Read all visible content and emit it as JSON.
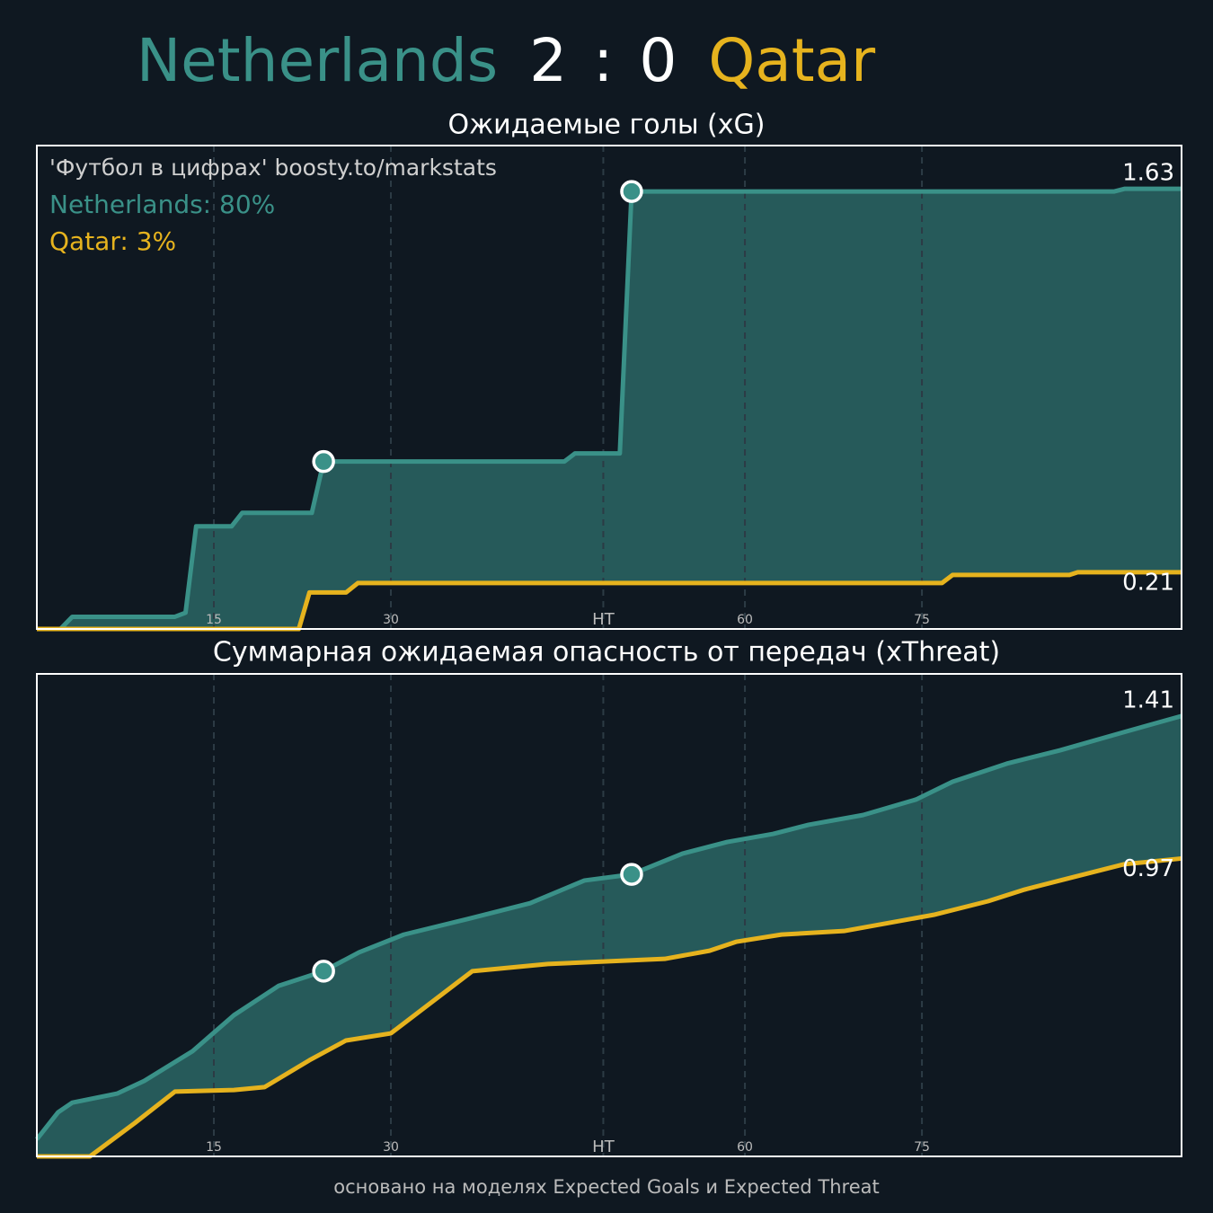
{
  "header": {
    "home": "Netherlands",
    "home_score": 2,
    "separator": ":",
    "away_score": 0,
    "away": "Qatar",
    "home_color": "#3a9188",
    "away_color": "#e6b31e"
  },
  "chart_data": [
    {
      "type": "line",
      "title": "Ожидаемые голы (xG)",
      "fill_between": true,
      "fill_color": "#265a5a",
      "grid": true,
      "annotations": [
        {
          "text": "'Футбол в цифрах' boosty.to/markstats",
          "color": "#cfcfcf"
        },
        {
          "text": "Netherlands: 80%",
          "color": "#3a9188"
        },
        {
          "text": "Qatar: 3%",
          "color": "#e6b31e"
        }
      ],
      "xlim": [
        0,
        97
      ],
      "ylim": [
        0,
        1.79
      ],
      "xticks": [
        15,
        30,
        {
          "value": 48,
          "label": "HT"
        },
        60,
        75
      ],
      "series": [
        {
          "name": "Netherlands",
          "color": "#3a9188",
          "markers": [
            9,
            13
          ],
          "x": [
            0,
            2,
            3,
            11.7,
            12.6,
            13.5,
            16.5,
            17.4,
            23.3,
            24.3,
            44.7,
            45.6,
            49.4,
            50.4,
            91.3,
            92.2,
            97
          ],
          "values": [
            0,
            0,
            0.045,
            0.045,
            0.06,
            0.38,
            0.38,
            0.43,
            0.43,
            0.62,
            0.62,
            0.65,
            0.65,
            1.62,
            1.62,
            1.63,
            1.63
          ]
        },
        {
          "name": "Qatar",
          "color": "#e6b31e",
          "markers": [],
          "x": [
            0,
            22.2,
            23.1,
            26.2,
            27.2,
            76.7,
            77.6,
            87.5,
            88.2,
            97
          ],
          "values": [
            0,
            0,
            0.135,
            0.135,
            0.17,
            0.17,
            0.2,
            0.2,
            0.21,
            0.21
          ]
        }
      ]
    },
    {
      "type": "line",
      "title": "Суммарная ожидаемая опасность от передач (xThreat)",
      "fill_between": true,
      "fill_color": "#265a5a",
      "grid": true,
      "xlim": [
        0,
        97
      ],
      "ylim": [
        0.05,
        1.54
      ],
      "xticks": [
        15,
        30,
        {
          "value": 48,
          "label": "HT"
        },
        60,
        75
      ],
      "series": [
        {
          "name": "Netherlands",
          "color": "#3a9188",
          "markers": [
            8,
            14
          ],
          "x": [
            0,
            1.8,
            3,
            6.8,
            9.1,
            13.2,
            16.7,
            20.5,
            24.3,
            27.3,
            31.1,
            36.5,
            41.8,
            46.4,
            50.4,
            54.7,
            58.5,
            62.4,
            65.4,
            70,
            74.5,
            77.6,
            82.2,
            86.7,
            92.1,
            97
          ],
          "values": [
            0.103,
            0.186,
            0.216,
            0.244,
            0.283,
            0.375,
            0.486,
            0.577,
            0.622,
            0.68,
            0.735,
            0.783,
            0.832,
            0.902,
            0.921,
            0.985,
            1.021,
            1.046,
            1.074,
            1.104,
            1.152,
            1.207,
            1.263,
            1.304,
            1.36,
            1.41
          ]
        },
        {
          "name": "Qatar",
          "color": "#e6b31e",
          "markers": [],
          "x": [
            0,
            4.5,
            8.3,
            11.7,
            16.7,
            19.3,
            23.1,
            26.2,
            30,
            36.9,
            43.3,
            53.2,
            57,
            59.3,
            63.1,
            68.4,
            76,
            80.6,
            83.7,
            86.7,
            92.1,
            97
          ],
          "values": [
            0.05,
            0.05,
            0.153,
            0.25,
            0.255,
            0.264,
            0.347,
            0.408,
            0.43,
            0.622,
            0.644,
            0.66,
            0.685,
            0.713,
            0.735,
            0.746,
            0.796,
            0.838,
            0.874,
            0.902,
            0.952,
            0.97
          ]
        }
      ]
    }
  ],
  "footer": "основано на моделях Expected Goals и Expected Threat"
}
